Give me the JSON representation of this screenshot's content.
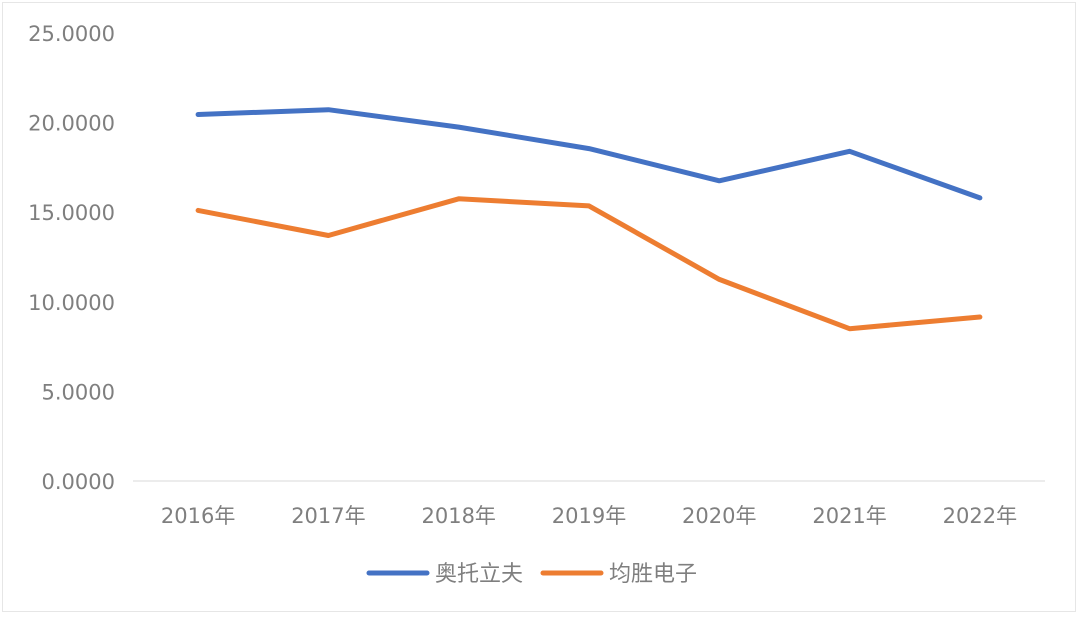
{
  "chart_data": {
    "type": "line",
    "categories": [
      "2016年",
      "2017年",
      "2018年",
      "2019年",
      "2020年",
      "2021年",
      "2022年"
    ],
    "series": [
      {
        "name": "奥托立夫",
        "color": "#4472c4",
        "values": [
          20.45,
          20.72,
          19.75,
          18.55,
          16.75,
          18.4,
          15.8
        ]
      },
      {
        "name": "均胜电子",
        "color": "#ed7d31",
        "values": [
          15.1,
          13.7,
          15.75,
          15.35,
          11.25,
          8.5,
          9.15
        ]
      }
    ],
    "ylim": [
      0,
      25
    ],
    "yticks": [
      "0.0000",
      "5.0000",
      "10.0000",
      "15.0000",
      "20.0000",
      "25.0000"
    ],
    "grid": false,
    "legend": "bottom",
    "title": "",
    "xlabel": "",
    "ylabel": ""
  }
}
